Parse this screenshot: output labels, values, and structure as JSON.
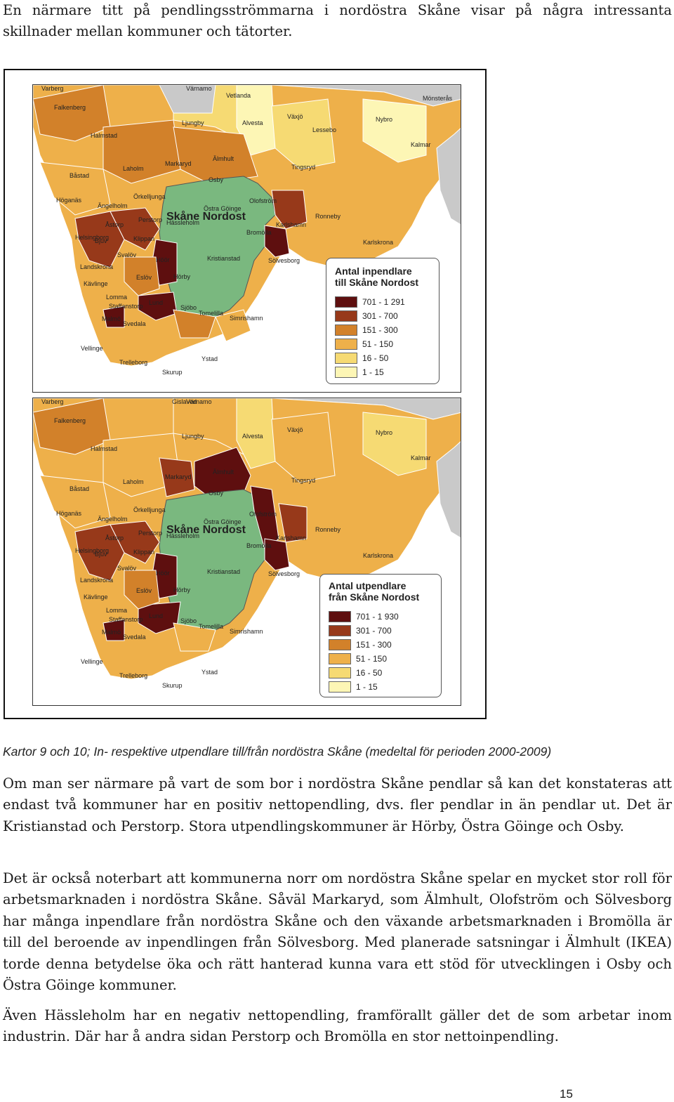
{
  "intro_text": "En närmare titt på pendlingsströmmarna i nordöstra Skåne visar på några intressanta skillnader mellan kommuner och tätorter.",
  "colors": {
    "c1": "#5e0f0f",
    "c2": "#97391a",
    "c3": "#d2812a",
    "c4": "#eeb04a",
    "c5": "#f6da73",
    "c6": "#fdf6b5",
    "green": "#7ab87f",
    "grey": "#c9c9c9",
    "sea": "#ffffff"
  },
  "map_in": {
    "title": "Skåne Nordost",
    "legend_title_1": "Antal inpendlare",
    "legend_title_2": "till Skåne Nordost",
    "legend": [
      "701 - 1 291",
      "301 - 700",
      "151 - 300",
      "51 - 150",
      "16 - 50",
      "1 - 15"
    ],
    "labels": [
      "Varberg",
      "Värnamo",
      "Vetlanda",
      "Mönsterås",
      "Falkenberg",
      "Växjö",
      "Nybro",
      "Halmstad",
      "Ljungby",
      "Alvesta",
      "Lessebo",
      "Kalmar",
      "Båstad",
      "Laholm",
      "Markaryd",
      "Älmhult",
      "Tingsryd",
      "Höganäs",
      "Ängelholm",
      "Örkelljunga",
      "Osby",
      "Olofström",
      "Ronneby",
      "Helsingborg",
      "Åstorp",
      "Perstorp",
      "Östra Göinge",
      "Hässleholm",
      "Karlshamn",
      "Bjuv",
      "Klippan",
      "Bromölla",
      "Karlskrona",
      "Landskrona",
      "Svalöv",
      "Höör",
      "Kristianstad",
      "Sölvesborg",
      "Kävlinge",
      "Eslöv",
      "Hörby",
      "Lomma",
      "Staffanstorp",
      "Lund",
      "Sjöbo",
      "Tomelilla",
      "Malmö",
      "Svedala",
      "Simrishamn",
      "Vellinge",
      "Trelleborg",
      "Ystad",
      "Skurup"
    ]
  },
  "map_out": {
    "title": "Skåne Nordost",
    "legend_title_1": "Antal utpendlare",
    "legend_title_2": "från Skåne Nordost",
    "legend": [
      "701 - 1 930",
      "301 - 700",
      "151 - 300",
      "51 - 150",
      "16 - 50",
      "1 - 15"
    ],
    "labels": [
      "Varberg",
      "Gislaved",
      "Värnamo",
      "Falkenberg",
      "Växjö",
      "Nybro",
      "Halmstad",
      "Ljungby",
      "Alvesta",
      "Kalmar",
      "Båstad",
      "Laholm",
      "Markaryd",
      "Älmhult",
      "Tingsryd",
      "Höganäs",
      "Ängelholm",
      "Örkelljunga",
      "Osby",
      "Olofström",
      "Ronneby",
      "Helsingborg",
      "Åstorp",
      "Perstorp",
      "Östra Göinge",
      "Hässleholm",
      "Karlshamn",
      "Bjuv",
      "Klippan",
      "Bromölla",
      "Karlskrona",
      "Landskrona",
      "Svalöv",
      "Höör",
      "Kristianstad",
      "Sölvesborg",
      "Kävlinge",
      "Eslöv",
      "Hörby",
      "Lomma",
      "Staffanstorp",
      "Lund",
      "Sjöbo",
      "Tomelilla",
      "Malmö",
      "Svedala",
      "Simrishamn",
      "Vellinge",
      "Trelleborg",
      "Ystad",
      "Skurup"
    ]
  },
  "caption": "Kartor 9 och 10; In- respektive utpendlare till/från nordöstra Skåne (medeltal för perioden 2000-2009)",
  "para1": "Om man ser närmare på vart de som bor i nordöstra Skåne pendlar så kan det konstateras att endast två kommuner har en positiv nettopendling, dvs. fler pendlar in än pendlar ut. Det är Kristianstad och Perstorp. Stora utpendlingskommuner är Hörby, Östra Göinge och Osby.",
  "para2": "Det är också noterbart att kommunerna norr om nordöstra Skåne spelar en mycket stor roll för arbetsmarknaden i nordöstra Skåne. Såväl Markaryd, som Älmhult, Olofström och Sölvesborg har många inpendlare från nordöstra Skåne och den växande arbetsmarknaden i Bromölla är till del beroende av inpendlingen från Sölvesborg. Med planerade satsningar i Älmhult (IKEA) torde denna betydelse öka och rätt hanterad kunna vara ett stöd för utvecklingen i Osby och Östra Göinge kommuner.",
  "para3": "Även Hässleholm har en negativ nettopendling, framförallt gäller det de som arbetar inom industrin. Där har å andra sidan Perstorp och Bromölla en stor nettoinpendling.",
  "page_number": "15"
}
